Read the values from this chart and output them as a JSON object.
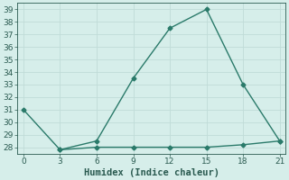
{
  "xlabel": "Humidex (Indice chaleur)",
  "line1_x": [
    0,
    3,
    6,
    9,
    12,
    15,
    18,
    21
  ],
  "line1_y": [
    31,
    27.8,
    28.5,
    33.5,
    37.5,
    39,
    33,
    28.5
  ],
  "line2_x": [
    3,
    6,
    9,
    12,
    15,
    18,
    21
  ],
  "line2_y": [
    27.8,
    28.0,
    28.0,
    28.0,
    28.0,
    28.2,
    28.5
  ],
  "line_color": "#2a7a6a",
  "marker": "D",
  "marker_size": 2.5,
  "xlim": [
    -0.5,
    21.5
  ],
  "ylim": [
    27.5,
    39.5
  ],
  "xticks": [
    0,
    3,
    6,
    9,
    12,
    15,
    18,
    21
  ],
  "yticks": [
    28,
    29,
    30,
    31,
    32,
    33,
    34,
    35,
    36,
    37,
    38,
    39
  ],
  "bg_color": "#d6eeea",
  "grid_color": "#c0dcd8",
  "font_color": "#2a5a50",
  "tick_fontsize": 6.5,
  "label_fontsize": 7.5,
  "linewidth": 1.0
}
